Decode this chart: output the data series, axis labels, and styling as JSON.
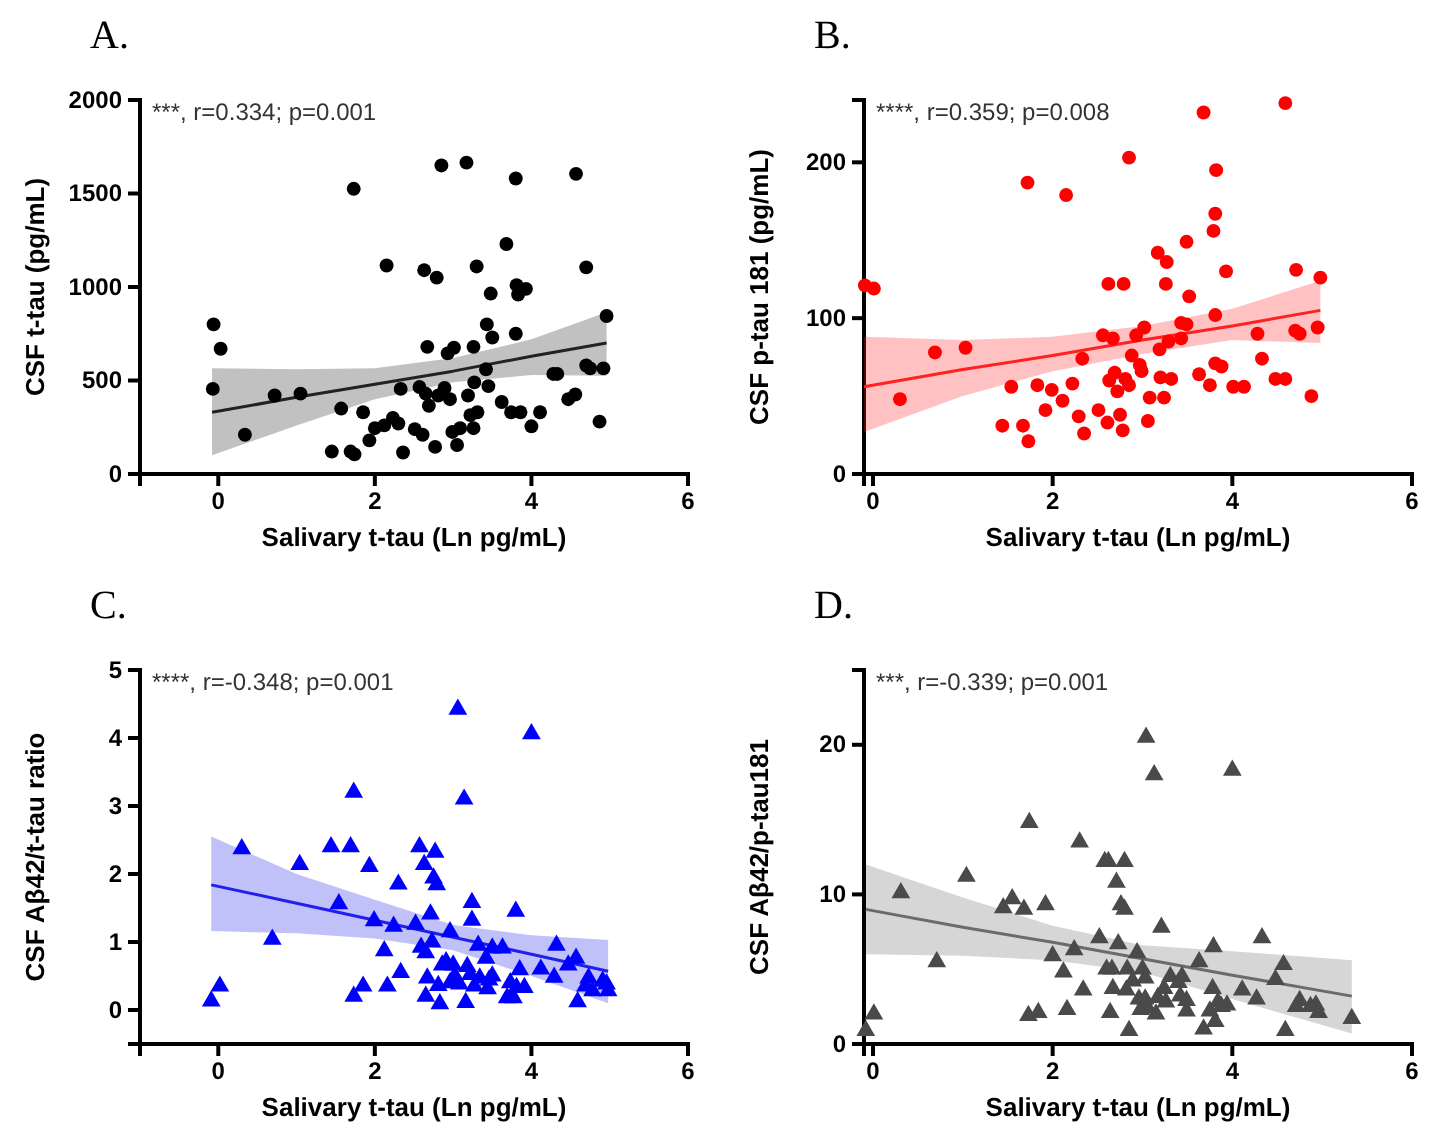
{
  "chart_data": [
    {
      "type": "scatter",
      "title": "A.",
      "xlabel": "Salivary t-tau (Ln pg/mL)",
      "ylabel": "CSF t-tau (pg/mL)",
      "annotations": [
        "***, r=0.334; p=0.001"
      ],
      "xlim": [
        -1,
        6
      ],
      "xticks": [
        0,
        2,
        4,
        6
      ],
      "ylim": [
        0,
        2000
      ],
      "yticks": [
        0,
        500,
        1000,
        1500,
        2000
      ],
      "series": [
        {
          "color": "#000000",
          "marker": "circle",
          "x": [
            -0.06,
            0.03,
            -0.07,
            0.34,
            0.72,
            1.05,
            1.57,
            1.73,
            1.45,
            1.69,
            1.74,
            1.85,
            1.93,
            2.0,
            2.15,
            2.12,
            2.23,
            2.3,
            2.33,
            2.36,
            2.51,
            2.57,
            2.63,
            2.61,
            2.65,
            2.67,
            2.69,
            2.77,
            2.79,
            2.85,
            2.81,
            2.89,
            2.96,
            2.93,
            3.01,
            2.99,
            3.05,
            3.09,
            3.17,
            3.19,
            3.22,
            3.26,
            3.27,
            3.3,
            3.31,
            3.26,
            3.42,
            3.43,
            3.48,
            3.5,
            3.45,
            3.62,
            3.68,
            3.74,
            3.8,
            3.8,
            3.81,
            3.83,
            3.86,
            3.93,
            4.0,
            4.11,
            4.28,
            4.33,
            4.47,
            4.56,
            4.57,
            4.7,
            4.7,
            4.75,
            4.87,
            4.92,
            4.96
          ],
          "values": [
            800,
            670,
            455,
            210,
            420,
            430,
            350,
            1525,
            120,
            120,
            105,
            330,
            180,
            245,
            1115,
            260,
            300,
            270,
            455,
            115,
            240,
            465,
            1090,
            210,
            430,
            680,
            365,
            145,
            1050,
            1650,
            420,
            460,
            400,
            645,
            675,
            225,
            155,
            245,
            1665,
            420,
            315,
            680,
            490,
            1110,
            330,
            245,
            560,
            800,
            965,
            730,
            470,
            385,
            1230,
            330,
            750,
            1580,
            1010,
            960,
            330,
            990,
            255,
            330,
            535,
            535,
            400,
            425,
            1605,
            1105,
            580,
            565,
            280,
            565,
            845
          ]
        },
        {
          "type": "line",
          "color": "#222222",
          "x": [
            -0.08,
            1,
            2,
            3,
            4,
            4.96
          ],
          "values": [
            330,
            410,
            480,
            550,
            630,
            700
          ],
          "lower": [
            100,
            260,
            400,
            490,
            530,
            525
          ],
          "upper": [
            565,
            560,
            565,
            620,
            720,
            865
          ]
        }
      ]
    },
    {
      "type": "scatter",
      "title": "B.",
      "xlabel": "Salivary t-tau (Ln pg/mL)",
      "ylabel": "CSF p-tau 181 (pg/mL)",
      "annotations": [
        "****, r=0.359; p=0.008"
      ],
      "xlim": [
        -0.1,
        6
      ],
      "xticks": [
        0,
        2,
        4,
        6
      ],
      "ylim": [
        0,
        240
      ],
      "yticks": [
        0,
        100,
        200
      ],
      "series": [
        {
          "color": "#ff0000",
          "marker": "circle",
          "x": [
            -0.09,
            0.01,
            0.3,
            0.69,
            1.03,
            1.44,
            1.54,
            1.67,
            1.72,
            1.73,
            1.83,
            1.92,
            1.99,
            2.11,
            2.15,
            2.22,
            2.29,
            2.33,
            2.35,
            2.51,
            2.56,
            2.61,
            2.62,
            2.63,
            2.67,
            2.69,
            2.72,
            2.75,
            2.78,
            2.79,
            2.81,
            2.85,
            2.85,
            2.88,
            2.93,
            2.97,
            2.99,
            3.02,
            3.06,
            3.08,
            3.17,
            3.19,
            3.2,
            3.24,
            3.26,
            3.27,
            3.29,
            3.32,
            3.43,
            3.43,
            3.49,
            3.49,
            3.52,
            3.63,
            3.68,
            3.75,
            3.79,
            3.81,
            3.81,
            3.82,
            3.81,
            3.88,
            3.93,
            4.01,
            4.13,
            4.28,
            4.33,
            4.48,
            4.59,
            4.59,
            4.7,
            4.71,
            4.75,
            4.88,
            4.95,
            4.98
          ],
          "values": [
            121,
            119,
            48,
            78,
            81,
            31,
            56,
            31,
            187,
            21,
            57,
            41,
            54,
            47,
            179,
            58,
            37,
            74,
            26,
            41,
            89,
            33,
            122,
            60,
            87,
            65,
            53,
            38,
            28,
            122,
            61,
            203,
            57,
            76,
            89,
            70,
            66,
            94,
            34,
            49,
            142,
            80,
            62,
            49,
            122,
            136,
            85,
            61,
            97,
            87,
            96,
            149,
            114,
            64,
            232,
            57,
            156,
            102,
            167,
            195,
            71,
            69,
            130,
            56,
            56,
            90,
            74,
            61,
            61,
            238,
            92,
            131,
            90,
            50,
            94,
            126
          ]
        },
        {
          "type": "line",
          "color": "#ff2020",
          "x": [
            -0.1,
            1,
            2,
            3,
            4,
            4.98
          ],
          "values": [
            56,
            67,
            76,
            86,
            95,
            105
          ],
          "lower": [
            27,
            50,
            66,
            77,
            86,
            84
          ],
          "upper": [
            88,
            86,
            88,
            95,
            106,
            124
          ]
        }
      ]
    },
    {
      "type": "scatter",
      "title": "C.",
      "xlabel": "Salivary t-tau (Ln pg/mL)",
      "ylabel": "CSF Aβ42/t-tau ratio",
      "annotations": [
        "****, r=-0.348; p=0.001"
      ],
      "xlim": [
        -1,
        6
      ],
      "xticks": [
        0,
        2,
        4,
        6
      ],
      "ylim": [
        -0.5,
        5
      ],
      "yticks": [
        0,
        1,
        2,
        3,
        4,
        5
      ],
      "series": [
        {
          "color": "#0000ff",
          "marker": "triangle",
          "x": [
            -0.09,
            0.02,
            0.3,
            0.69,
            1.04,
            1.44,
            1.54,
            1.69,
            1.73,
            1.73,
            1.85,
            1.93,
            1.99,
            2.12,
            2.16,
            2.24,
            2.3,
            2.33,
            2.52,
            2.57,
            2.59,
            2.63,
            2.65,
            2.65,
            2.67,
            2.71,
            2.73,
            2.75,
            2.77,
            2.79,
            2.81,
            2.83,
            2.86,
            2.91,
            2.96,
            2.96,
            3.0,
            3.02,
            3.06,
            3.08,
            3.14,
            3.16,
            3.18,
            3.22,
            3.24,
            3.24,
            3.27,
            3.32,
            3.34,
            3.42,
            3.44,
            3.46,
            3.5,
            3.5,
            3.63,
            3.69,
            3.73,
            3.77,
            3.8,
            3.81,
            3.85,
            3.91,
            4.0,
            4.12,
            4.29,
            4.32,
            4.47,
            4.57,
            4.59,
            4.69,
            4.73,
            4.78,
            4.91,
            4.96,
            4.98
          ],
          "values": [
            0.13,
            0.35,
            2.37,
            1.04,
            2.14,
            2.4,
            1.56,
            2.4,
            3.2,
            0.2,
            0.35,
            2.11,
            1.31,
            0.87,
            0.35,
            1.23,
            1.85,
            0.55,
            1.26,
            2.4,
            0.92,
            2.14,
            0.84,
            0.2,
            0.47,
            1.41,
            1.0,
            1.94,
            2.32,
            1.84,
            0.36,
            0.09,
            0.66,
            0.71,
            1.15,
            0.4,
            0.66,
            0.5,
            4.42,
            0.38,
            3.1,
            0.11,
            0.64,
            0.52,
            1.58,
            1.32,
            0.35,
            0.95,
            0.47,
            0.76,
            0.31,
            0.44,
            0.91,
            0.5,
            0.91,
            0.18,
            0.4,
            0.18,
            1.45,
            0.33,
            0.59,
            0.33,
            4.06,
            0.6,
            0.48,
            0.95,
            0.66,
            0.76,
            0.12,
            0.35,
            0.47,
            0.28,
            0.42,
            0.38,
            0.28
          ]
        },
        {
          "type": "line",
          "color": "#2020ee",
          "x": [
            -0.09,
            1,
            2,
            3,
            4,
            4.98
          ],
          "values": [
            1.84,
            1.57,
            1.32,
            1.07,
            0.82,
            0.57
          ],
          "lower": [
            1.16,
            1.13,
            1.05,
            0.88,
            0.5,
            0.1
          ],
          "upper": [
            2.55,
            2.0,
            1.62,
            1.25,
            1.1,
            1.03
          ]
        }
      ]
    },
    {
      "type": "scatter",
      "title": "D.",
      "xlabel": "Salivary t-tau (Ln pg/mL)",
      "ylabel": "CSF Aβ42/p-tau181",
      "annotations": [
        "***, r=-0.339; p=0.001"
      ],
      "xlim": [
        -0.1,
        6
      ],
      "xticks": [
        0,
        2,
        4,
        6
      ],
      "ylim": [
        0,
        25
      ],
      "yticks": [
        0,
        10,
        20
      ],
      "series": [
        {
          "color": "#4a4a4a",
          "marker": "triangle",
          "x": [
            -0.08,
            0.01,
            0.31,
            0.71,
            1.04,
            1.45,
            1.55,
            1.68,
            1.74,
            1.73,
            1.84,
            1.92,
            2.0,
            2.12,
            2.16,
            2.24,
            2.3,
            2.34,
            2.52,
            2.58,
            2.6,
            2.62,
            2.64,
            2.66,
            2.67,
            2.71,
            2.73,
            2.76,
            2.8,
            2.8,
            2.82,
            2.83,
            2.85,
            2.89,
            2.94,
            2.96,
            2.98,
            3.0,
            3.03,
            3.03,
            3.04,
            3.06,
            3.13,
            3.15,
            3.17,
            3.21,
            3.24,
            3.26,
            3.31,
            3.4,
            3.42,
            3.44,
            3.49,
            3.49,
            3.63,
            3.68,
            3.75,
            3.78,
            3.79,
            3.81,
            3.84,
            3.88,
            3.94,
            4.0,
            4.11,
            4.27,
            4.33,
            4.48,
            4.57,
            4.59,
            4.71,
            4.75,
            4.87,
            4.93,
            4.96,
            5.33
          ],
          "values": [
            0.9,
            2.0,
            10.1,
            5.5,
            11.2,
            9.1,
            9.7,
            9.0,
            14.8,
            1.9,
            2.1,
            9.3,
            5.9,
            4.8,
            2.3,
            6.3,
            13.5,
            3.6,
            7.1,
            12.2,
            5.0,
            12.2,
            2.1,
            5.0,
            3.7,
            10.8,
            6.7,
            9.3,
            12.2,
            9.0,
            3.6,
            5.0,
            0.9,
            4.2,
            6.1,
            3.0,
            2.3,
            5.0,
            4.4,
            3.0,
            20.5,
            2.4,
            18.0,
            2.0,
            3.1,
            7.8,
            3.7,
            2.8,
            4.5,
            4.1,
            3.2,
            4.5,
            2.9,
            2.2,
            5.5,
            1.0,
            2.2,
            3.7,
            6.5,
            1.5,
            2.8,
            2.5,
            2.6,
            18.3,
            3.6,
            3.0,
            7.1,
            4.3,
            5.3,
            0.9,
            2.5,
            2.9,
            2.5,
            2.6,
            2.1,
            1.7
          ]
        },
        {
          "type": "line",
          "color": "#6b6b6b",
          "x": [
            -0.08,
            1,
            2,
            3,
            4,
            5.33
          ],
          "values": [
            9.0,
            7.8,
            6.8,
            5.7,
            4.6,
            3.2
          ],
          "lower": [
            6.0,
            5.9,
            5.6,
            4.8,
            3.0,
            0.7
          ],
          "upper": [
            12.0,
            9.8,
            7.9,
            6.6,
            6.2,
            5.6
          ]
        }
      ]
    }
  ]
}
